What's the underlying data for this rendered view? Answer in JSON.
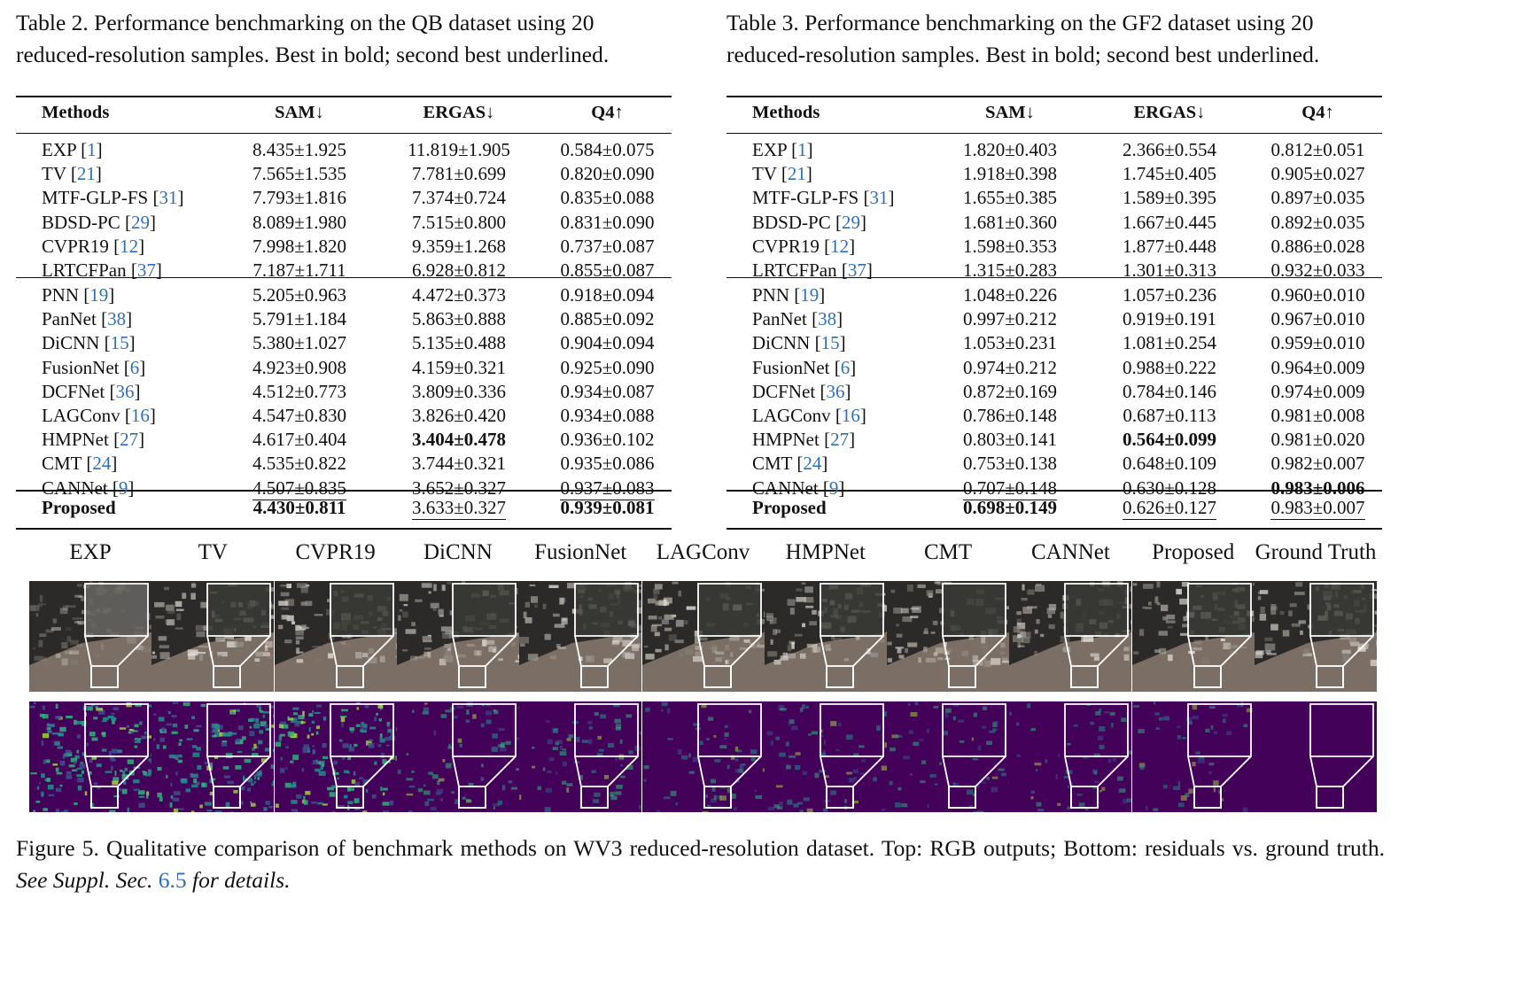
{
  "table2": {
    "caption_prefix": "Table 2.",
    "caption_text": "Performance benchmarking on the QB dataset using 20 reduced-resolution samples. Best in bold; second best underlined.",
    "headers": [
      "Methods",
      "SAM↓",
      "ERGAS↓",
      "Q4↑"
    ],
    "group1": [
      {
        "method": "EXP",
        "ref": "1",
        "sam": "8.435±1.925",
        "ergas": "11.819±1.905",
        "q4": "0.584±0.075"
      },
      {
        "method": "TV",
        "ref": "21",
        "sam": "7.565±1.535",
        "ergas": "7.781±0.699",
        "q4": "0.820±0.090"
      },
      {
        "method": "MTF-GLP-FS",
        "ref": "31",
        "sam": "7.793±1.816",
        "ergas": "7.374±0.724",
        "q4": "0.835±0.088"
      },
      {
        "method": "BDSD-PC",
        "ref": "29",
        "sam": "8.089±1.980",
        "ergas": "7.515±0.800",
        "q4": "0.831±0.090"
      },
      {
        "method": "CVPR19",
        "ref": "12",
        "sam": "7.998±1.820",
        "ergas": "9.359±1.268",
        "q4": "0.737±0.087"
      },
      {
        "method": "LRTCFPan",
        "ref": "37",
        "sam": "7.187±1.711",
        "ergas": "6.928±0.812",
        "q4": "0.855±0.087"
      }
    ],
    "group2": [
      {
        "method": "PNN",
        "ref": "19",
        "sam": "5.205±0.963",
        "ergas": "4.472±0.373",
        "q4": "0.918±0.094"
      },
      {
        "method": "PanNet",
        "ref": "38",
        "sam": "5.791±1.184",
        "ergas": "5.863±0.888",
        "q4": "0.885±0.092"
      },
      {
        "method": "DiCNN",
        "ref": "15",
        "sam": "5.380±1.027",
        "ergas": "5.135±0.488",
        "q4": "0.904±0.094"
      },
      {
        "method": "FusionNet",
        "ref": "6",
        "sam": "4.923±0.908",
        "ergas": "4.159±0.321",
        "q4": "0.925±0.090"
      },
      {
        "method": "DCFNet",
        "ref": "36",
        "sam": "4.512±0.773",
        "ergas": "3.809±0.336",
        "q4": "0.934±0.087"
      },
      {
        "method": "LAGConv",
        "ref": "16",
        "sam": "4.547±0.830",
        "ergas": "3.826±0.420",
        "q4": "0.934±0.088"
      },
      {
        "method": "HMPNet",
        "ref": "27",
        "sam": "4.617±0.404",
        "ergas": "3.404±0.478",
        "q4": "0.936±0.102",
        "ergas_style": "b"
      },
      {
        "method": "CMT",
        "ref": "24",
        "sam": "4.535±0.822",
        "ergas": "3.744±0.321",
        "q4": "0.935±0.086"
      },
      {
        "method": "CANNet",
        "ref": "9",
        "sam": "4.507±0.835",
        "ergas": "3.652±0.327",
        "q4": "0.937±0.083",
        "sam_style": "u",
        "q4_style": "u"
      }
    ],
    "proposed": {
      "method": "Proposed",
      "sam": "4.430±0.811",
      "ergas": "3.633±0.327",
      "q4": "0.939±0.081",
      "sam_style": "b",
      "ergas_style": "u",
      "q4_style": "b"
    }
  },
  "table3": {
    "caption_prefix": "Table 3.",
    "caption_text": "Performance benchmarking on the GF2 dataset using 20 reduced-resolution samples. Best in bold; second best underlined.",
    "headers": [
      "Methods",
      "SAM↓",
      "ERGAS↓",
      "Q4↑"
    ],
    "group1": [
      {
        "method": "EXP",
        "ref": "1",
        "sam": "1.820±0.403",
        "ergas": "2.366±0.554",
        "q4": "0.812±0.051"
      },
      {
        "method": "TV",
        "ref": "21",
        "sam": "1.918±0.398",
        "ergas": "1.745±0.405",
        "q4": "0.905±0.027"
      },
      {
        "method": "MTF-GLP-FS",
        "ref": "31",
        "sam": "1.655±0.385",
        "ergas": "1.589±0.395",
        "q4": "0.897±0.035"
      },
      {
        "method": "BDSD-PC",
        "ref": "29",
        "sam": "1.681±0.360",
        "ergas": "1.667±0.445",
        "q4": "0.892±0.035"
      },
      {
        "method": "CVPR19",
        "ref": "12",
        "sam": "1.598±0.353",
        "ergas": "1.877±0.448",
        "q4": "0.886±0.028"
      },
      {
        "method": "LRTCFPan",
        "ref": "37",
        "sam": "1.315±0.283",
        "ergas": "1.301±0.313",
        "q4": "0.932±0.033"
      }
    ],
    "group2": [
      {
        "method": "PNN",
        "ref": "19",
        "sam": "1.048±0.226",
        "ergas": "1.057±0.236",
        "q4": "0.960±0.010"
      },
      {
        "method": "PanNet",
        "ref": "38",
        "sam": "0.997±0.212",
        "ergas": "0.919±0.191",
        "q4": "0.967±0.010"
      },
      {
        "method": "DiCNN",
        "ref": "15",
        "sam": "1.053±0.231",
        "ergas": "1.081±0.254",
        "q4": "0.959±0.010"
      },
      {
        "method": "FusionNet",
        "ref": "6",
        "sam": "0.974±0.212",
        "ergas": "0.988±0.222",
        "q4": "0.964±0.009"
      },
      {
        "method": "DCFNet",
        "ref": "36",
        "sam": "0.872±0.169",
        "ergas": "0.784±0.146",
        "q4": "0.974±0.009"
      },
      {
        "method": "LAGConv",
        "ref": "16",
        "sam": "0.786±0.148",
        "ergas": "0.687±0.113",
        "q4": "0.981±0.008"
      },
      {
        "method": "HMPNet",
        "ref": "27",
        "sam": "0.803±0.141",
        "ergas": "0.564±0.099",
        "q4": "0.981±0.020",
        "ergas_style": "b"
      },
      {
        "method": "CMT",
        "ref": "24",
        "sam": "0.753±0.138",
        "ergas": "0.648±0.109",
        "q4": "0.982±0.007"
      },
      {
        "method": "CANNet",
        "ref": "9",
        "sam": "0.707±0.148",
        "ergas": "0.630±0.128",
        "q4": "0.983±0.006",
        "sam_style": "u",
        "q4_style": "b"
      }
    ],
    "proposed": {
      "method": "Proposed",
      "sam": "0.698±0.149",
      "ergas": "0.626±0.127",
      "q4": "0.983±0.007",
      "sam_style": "b",
      "ergas_style": "u",
      "q4_style": "u"
    }
  },
  "figure5": {
    "methods": [
      "EXP",
      "TV",
      "CVPR19",
      "DiCNN",
      "FusionNet",
      "LAGConv",
      "HMPNet",
      "CMT",
      "CANNet",
      "Proposed",
      "Ground Truth"
    ],
    "residual_intensity": [
      1.0,
      0.95,
      0.95,
      0.45,
      0.42,
      0.38,
      0.4,
      0.36,
      0.34,
      0.3,
      0.0
    ],
    "caption_prefix": "Figure 5.",
    "caption_text": "Qualitative comparison of benchmark methods on WV3 reduced-resolution dataset. Top: RGB outputs; Bottom: residuals vs. ground truth.",
    "caption_italic_a": "See Suppl. Sec.",
    "caption_ref": "6.5",
    "caption_italic_b": "for details."
  },
  "colors": {
    "link": "#2f6fb6",
    "residual_base": "#44015a",
    "residual_hot": "#2fb47c"
  }
}
